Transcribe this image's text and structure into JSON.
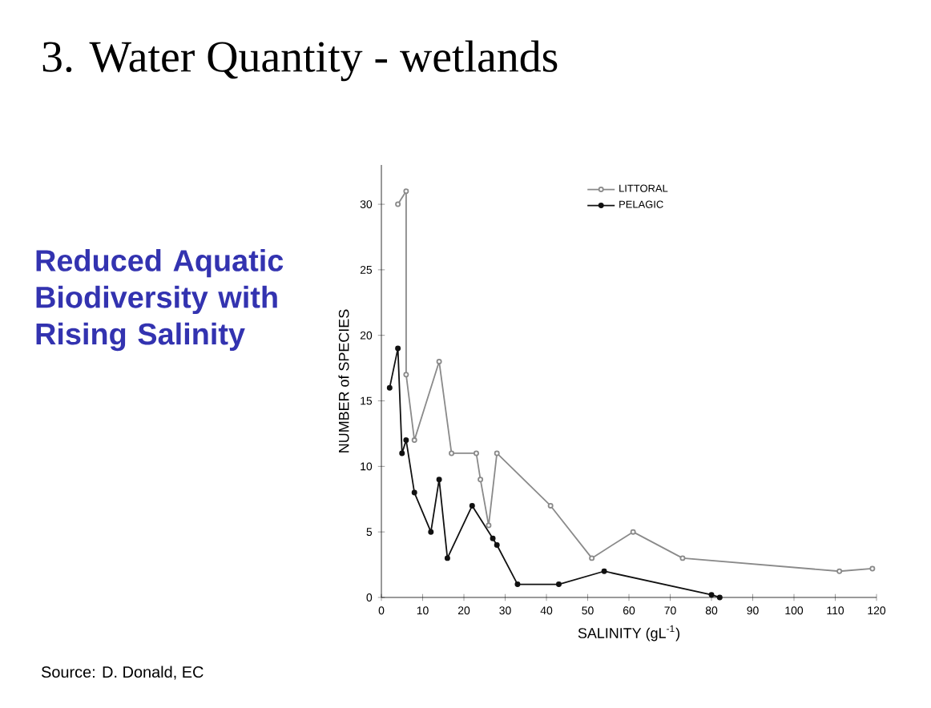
{
  "chart_data": {
    "type": "line",
    "title": "3. Water Quantity - wetlands",
    "xlabel": "SALINITY (gL$^{-1}$)",
    "ylabel": "NUMBER of SPECIES",
    "annotations": [
      "Reduced Aquatic Biodiversity with Rising Salinity",
      "Source:  D. Donald, EC"
    ],
    "xlim": [
      0,
      120
    ],
    "ylim": [
      0,
      33
    ],
    "xticks": [
      0,
      10,
      20,
      30,
      40,
      50,
      60,
      70,
      80,
      90,
      100,
      110,
      120
    ],
    "yticks": [
      0,
      5,
      10,
      15,
      20,
      25,
      30
    ],
    "marker": "circle",
    "legend": "top",
    "grid": false,
    "series": [
      {
        "name": "LITTORAL",
        "color": "#8a8a8a",
        "x": [
          4,
          6,
          6,
          8,
          14,
          17,
          23,
          24,
          26,
          28,
          41,
          51,
          61,
          73,
          111,
          119
        ],
        "values": [
          30,
          31,
          17,
          12,
          18,
          11,
          11,
          9,
          5.5,
          11,
          7,
          3,
          5,
          3,
          2,
          2.2
        ]
      },
      {
        "name": "PELAGIC",
        "color": "#111111",
        "x": [
          2,
          4,
          5,
          6,
          8,
          12,
          14,
          16,
          22,
          27,
          28,
          33,
          43,
          54,
          80,
          82
        ],
        "values": [
          16,
          19,
          11,
          12,
          8,
          5,
          9,
          3,
          7,
          4.5,
          4,
          1,
          1,
          2,
          0.2,
          0
        ]
      }
    ]
  }
}
